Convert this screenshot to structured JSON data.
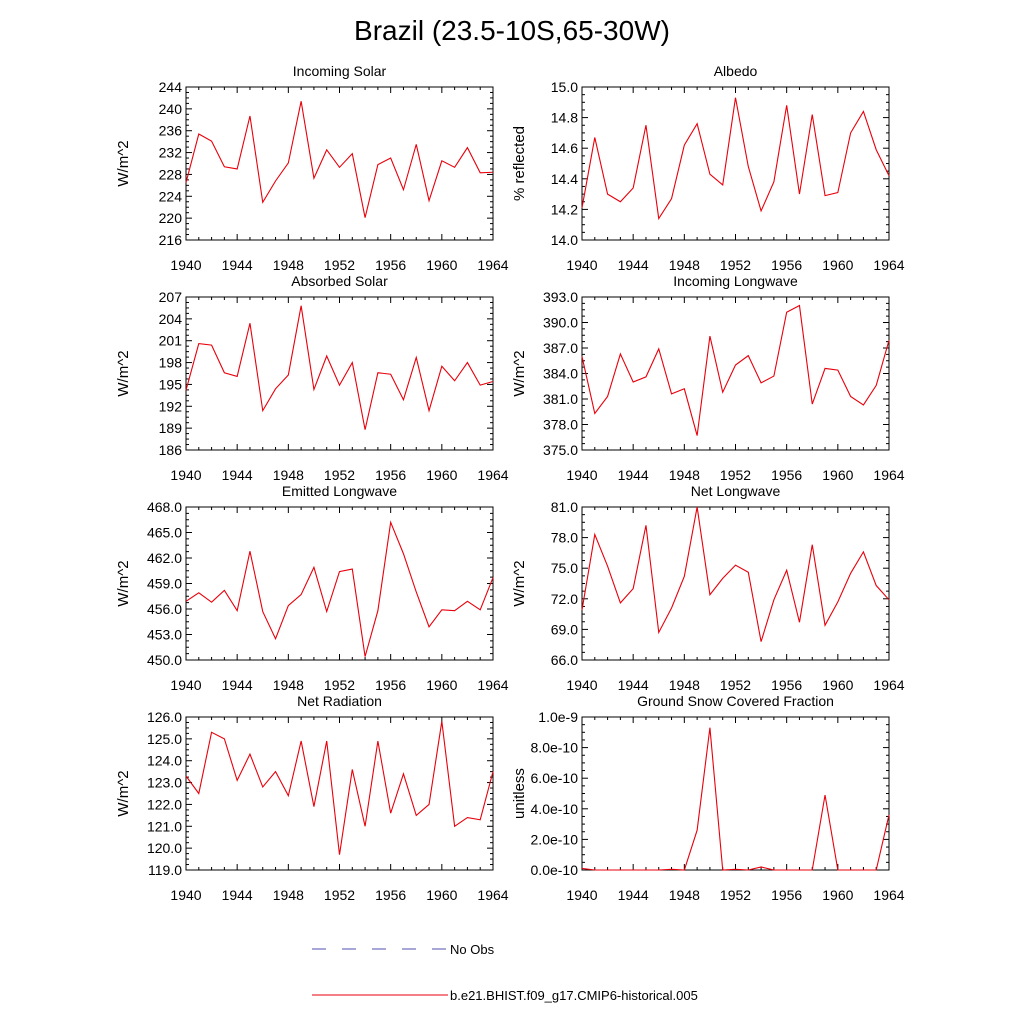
{
  "figure": {
    "title": "Brazil (23.5-10S,65-30W)",
    "line_color": "#e8000b",
    "obs_color": "#5050b0"
  },
  "legend": {
    "obs_label": "No Obs",
    "model_label": "b.e21.BHIST.f09_g17.CMIP6-historical.005"
  },
  "chart_data": [
    {
      "type": "line",
      "title": "Incoming Solar",
      "ylabel": "W/m^2",
      "xlabel": "",
      "xlim": [
        1940,
        1964
      ],
      "ylim": [
        216,
        244
      ],
      "yticks": [
        216,
        220,
        224,
        228,
        232,
        236,
        240,
        244
      ],
      "ytick_labels": [
        "216",
        "220",
        "224",
        "228",
        "232",
        "236",
        "240",
        "244"
      ],
      "xticks": [
        1940,
        1944,
        1948,
        1952,
        1956,
        1960,
        1964
      ],
      "xtick_labels": [
        "1940",
        "1944",
        "1948",
        "1952",
        "1956",
        "1960",
        "1964"
      ],
      "series": [
        {
          "name": "b.e21.BHIST.f09_g17.CMIP6-historical.005",
          "x": [
            1940,
            1941,
            1942,
            1943,
            1944,
            1945,
            1946,
            1947,
            1948,
            1949,
            1950,
            1951,
            1952,
            1953,
            1954,
            1955,
            1956,
            1957,
            1958,
            1959,
            1960,
            1961,
            1962,
            1963,
            1964
          ],
          "values": [
            226.5,
            235.4,
            234.1,
            229.4,
            229.0,
            238.7,
            222.9,
            226.8,
            230.1,
            241.4,
            227.3,
            232.5,
            229.3,
            231.8,
            220.1,
            229.8,
            231.0,
            225.2,
            233.5,
            223.2,
            230.5,
            229.3,
            232.9,
            228.3,
            228.4
          ]
        }
      ]
    },
    {
      "type": "line",
      "title": "Albedo",
      "ylabel": "% reflected",
      "xlabel": "",
      "xlim": [
        1940,
        1964
      ],
      "ylim": [
        14.0,
        15.0
      ],
      "yticks": [
        14.0,
        14.2,
        14.4,
        14.6,
        14.8,
        15.0
      ],
      "ytick_labels": [
        "14.0",
        "14.2",
        "14.4",
        "14.6",
        "14.8",
        "15.0"
      ],
      "xticks": [
        1940,
        1944,
        1948,
        1952,
        1956,
        1960,
        1964
      ],
      "xtick_labels": [
        "1940",
        "1944",
        "1948",
        "1952",
        "1956",
        "1960",
        "1964"
      ],
      "series": [
        {
          "name": "b.e21.BHIST.f09_g17.CMIP6-historical.005",
          "x": [
            1940,
            1941,
            1942,
            1943,
            1944,
            1945,
            1946,
            1947,
            1948,
            1949,
            1950,
            1951,
            1952,
            1953,
            1954,
            1955,
            1956,
            1957,
            1958,
            1959,
            1960,
            1961,
            1962,
            1963,
            1964
          ],
          "values": [
            14.21,
            14.67,
            14.3,
            14.25,
            14.34,
            14.75,
            14.14,
            14.27,
            14.62,
            14.76,
            14.43,
            14.36,
            14.93,
            14.48,
            14.19,
            14.38,
            14.88,
            14.3,
            14.82,
            14.29,
            14.31,
            14.7,
            14.84,
            14.59,
            14.42
          ]
        }
      ]
    },
    {
      "type": "line",
      "title": "Absorbed Solar",
      "ylabel": "W/m^2",
      "xlabel": "",
      "xlim": [
        1940,
        1964
      ],
      "ylim": [
        186,
        207
      ],
      "yticks": [
        186,
        189,
        192,
        195,
        198,
        201,
        204,
        207
      ],
      "ytick_labels": [
        "186",
        "189",
        "192",
        "195",
        "198",
        "201",
        "204",
        "207"
      ],
      "xticks": [
        1940,
        1944,
        1948,
        1952,
        1956,
        1960,
        1964
      ],
      "xtick_labels": [
        "1940",
        "1944",
        "1948",
        "1952",
        "1956",
        "1960",
        "1964"
      ],
      "series": [
        {
          "name": "b.e21.BHIST.f09_g17.CMIP6-historical.005",
          "x": [
            1940,
            1941,
            1942,
            1943,
            1944,
            1945,
            1946,
            1947,
            1948,
            1949,
            1950,
            1951,
            1952,
            1953,
            1954,
            1955,
            1956,
            1957,
            1958,
            1959,
            1960,
            1961,
            1962,
            1963,
            1964
          ],
          "values": [
            194.2,
            200.6,
            200.4,
            196.6,
            196.1,
            203.4,
            191.4,
            194.4,
            196.3,
            205.8,
            194.3,
            198.9,
            194.9,
            198.0,
            188.8,
            196.6,
            196.4,
            192.9,
            198.7,
            191.4,
            197.5,
            195.5,
            198.0,
            194.9,
            195.4
          ]
        }
      ]
    },
    {
      "type": "line",
      "title": "Incoming Longwave",
      "ylabel": "W/m^2",
      "xlabel": "",
      "xlim": [
        1940,
        1964
      ],
      "ylim": [
        375.0,
        393.0
      ],
      "yticks": [
        375.0,
        378.0,
        381.0,
        384.0,
        387.0,
        390.0,
        393.0
      ],
      "ytick_labels": [
        "375.0",
        "378.0",
        "381.0",
        "384.0",
        "387.0",
        "390.0",
        "393.0"
      ],
      "xticks": [
        1940,
        1944,
        1948,
        1952,
        1956,
        1960,
        1964
      ],
      "xtick_labels": [
        "1940",
        "1944",
        "1948",
        "1952",
        "1956",
        "1960",
        "1964"
      ],
      "series": [
        {
          "name": "b.e21.BHIST.f09_g17.CMIP6-historical.005",
          "x": [
            1940,
            1941,
            1942,
            1943,
            1944,
            1945,
            1946,
            1947,
            1948,
            1949,
            1950,
            1951,
            1952,
            1953,
            1954,
            1955,
            1956,
            1957,
            1958,
            1959,
            1960,
            1961,
            1962,
            1963,
            1964
          ],
          "values": [
            386.0,
            379.3,
            381.3,
            386.3,
            383.0,
            383.6,
            386.9,
            381.6,
            382.2,
            376.7,
            388.4,
            381.8,
            385.0,
            386.1,
            382.9,
            383.7,
            391.2,
            392.0,
            380.4,
            384.6,
            384.4,
            381.3,
            380.3,
            382.6,
            387.9
          ]
        }
      ]
    },
    {
      "type": "line",
      "title": "Emitted Longwave",
      "ylabel": "W/m^2",
      "xlabel": "",
      "xlim": [
        1940,
        1964
      ],
      "ylim": [
        450.0,
        468.0
      ],
      "yticks": [
        450.0,
        453.0,
        456.0,
        459.0,
        462.0,
        465.0,
        468.0
      ],
      "ytick_labels": [
        "450.0",
        "453.0",
        "456.0",
        "459.0",
        "462.0",
        "465.0",
        "468.0"
      ],
      "xticks": [
        1940,
        1944,
        1948,
        1952,
        1956,
        1960,
        1964
      ],
      "xtick_labels": [
        "1940",
        "1944",
        "1948",
        "1952",
        "1956",
        "1960",
        "1964"
      ],
      "series": [
        {
          "name": "b.e21.BHIST.f09_g17.CMIP6-historical.005",
          "x": [
            1940,
            1941,
            1942,
            1943,
            1944,
            1945,
            1946,
            1947,
            1948,
            1949,
            1950,
            1951,
            1952,
            1953,
            1954,
            1955,
            1956,
            1957,
            1958,
            1959,
            1960,
            1961,
            1962,
            1963,
            1964
          ],
          "values": [
            456.9,
            457.9,
            456.8,
            458.2,
            455.8,
            462.8,
            455.7,
            452.5,
            456.4,
            457.7,
            460.9,
            455.7,
            460.4,
            460.7,
            450.4,
            455.8,
            466.2,
            462.5,
            458.0,
            453.9,
            455.9,
            455.8,
            456.9,
            455.9,
            459.7
          ]
        }
      ]
    },
    {
      "type": "line",
      "title": "Net Longwave",
      "ylabel": "W/m^2",
      "xlabel": "",
      "xlim": [
        1940,
        1964
      ],
      "ylim": [
        66.0,
        81.0
      ],
      "yticks": [
        66.0,
        69.0,
        72.0,
        75.0,
        78.0,
        81.0
      ],
      "ytick_labels": [
        "66.0",
        "69.0",
        "72.0",
        "75.0",
        "78.0",
        "81.0"
      ],
      "xticks": [
        1940,
        1944,
        1948,
        1952,
        1956,
        1960,
        1964
      ],
      "xtick_labels": [
        "1940",
        "1944",
        "1948",
        "1952",
        "1956",
        "1960",
        "1964"
      ],
      "series": [
        {
          "name": "b.e21.BHIST.f09_g17.CMIP6-historical.005",
          "x": [
            1940,
            1941,
            1942,
            1943,
            1944,
            1945,
            1946,
            1947,
            1948,
            1949,
            1950,
            1951,
            1952,
            1953,
            1954,
            1955,
            1956,
            1957,
            1958,
            1959,
            1960,
            1961,
            1962,
            1963,
            1964
          ],
          "values": [
            70.9,
            78.3,
            75.2,
            71.6,
            73.0,
            79.2,
            68.7,
            71.1,
            74.2,
            81.0,
            72.4,
            74.0,
            75.3,
            74.6,
            67.8,
            71.9,
            74.8,
            69.7,
            77.3,
            69.4,
            71.7,
            74.5,
            76.6,
            73.3,
            71.9
          ]
        }
      ]
    },
    {
      "type": "line",
      "title": "Net Radiation",
      "ylabel": "W/m^2",
      "xlabel": "",
      "xlim": [
        1940,
        1964
      ],
      "ylim": [
        119.0,
        126.0
      ],
      "yticks": [
        119.0,
        120.0,
        121.0,
        122.0,
        123.0,
        124.0,
        125.0,
        126.0
      ],
      "ytick_labels": [
        "119.0",
        "120.0",
        "121.0",
        "122.0",
        "123.0",
        "124.0",
        "125.0",
        "126.0"
      ],
      "xticks": [
        1940,
        1944,
        1948,
        1952,
        1956,
        1960,
        1964
      ],
      "xtick_labels": [
        "1940",
        "1944",
        "1948",
        "1952",
        "1956",
        "1960",
        "1964"
      ],
      "series": [
        {
          "name": "b.e21.BHIST.f09_g17.CMIP6-historical.005",
          "x": [
            1940,
            1941,
            1942,
            1943,
            1944,
            1945,
            1946,
            1947,
            1948,
            1949,
            1950,
            1951,
            1952,
            1953,
            1954,
            1955,
            1956,
            1957,
            1958,
            1959,
            1960,
            1961,
            1962,
            1963,
            1964
          ],
          "values": [
            123.3,
            122.5,
            125.3,
            125.0,
            123.1,
            124.3,
            122.8,
            123.5,
            122.4,
            124.9,
            121.9,
            124.9,
            119.7,
            123.6,
            121.0,
            124.9,
            121.6,
            123.4,
            121.5,
            122.0,
            125.8,
            121.0,
            121.4,
            121.3,
            123.5
          ]
        }
      ]
    },
    {
      "type": "line",
      "title": "Ground Snow Covered Fraction",
      "ylabel": "unitless",
      "xlabel": "",
      "xlim": [
        1940,
        1964
      ],
      "ylim": [
        0,
        1e-09
      ],
      "yticks": [
        0,
        2e-10,
        4e-10,
        6e-10,
        8e-10,
        1e-09
      ],
      "ytick_labels": [
        "0.0e-10",
        "2.0e-10",
        "4.0e-10",
        "6.0e-10",
        "8.0e-10",
        "1.0e-9"
      ],
      "xticks": [
        1940,
        1944,
        1948,
        1952,
        1956,
        1960,
        1964
      ],
      "xtick_labels": [
        "1940",
        "1944",
        "1948",
        "1952",
        "1956",
        "1960",
        "1964"
      ],
      "series": [
        {
          "name": "b.e21.BHIST.f09_g17.CMIP6-historical.005",
          "x": [
            1940,
            1941,
            1942,
            1943,
            1944,
            1945,
            1946,
            1947,
            1948,
            1949,
            1950,
            1951,
            1952,
            1953,
            1954,
            1955,
            1956,
            1957,
            1958,
            1959,
            1960,
            1961,
            1962,
            1963,
            1964
          ],
          "values": [
            1e-11,
            0,
            0,
            0,
            0,
            0,
            0,
            5e-12,
            0,
            2.6e-10,
            9.3e-10,
            0,
            5e-12,
            0,
            2e-11,
            0,
            0,
            0,
            0,
            4.9e-10,
            0,
            0,
            0,
            0,
            3.6e-10
          ]
        }
      ]
    }
  ]
}
